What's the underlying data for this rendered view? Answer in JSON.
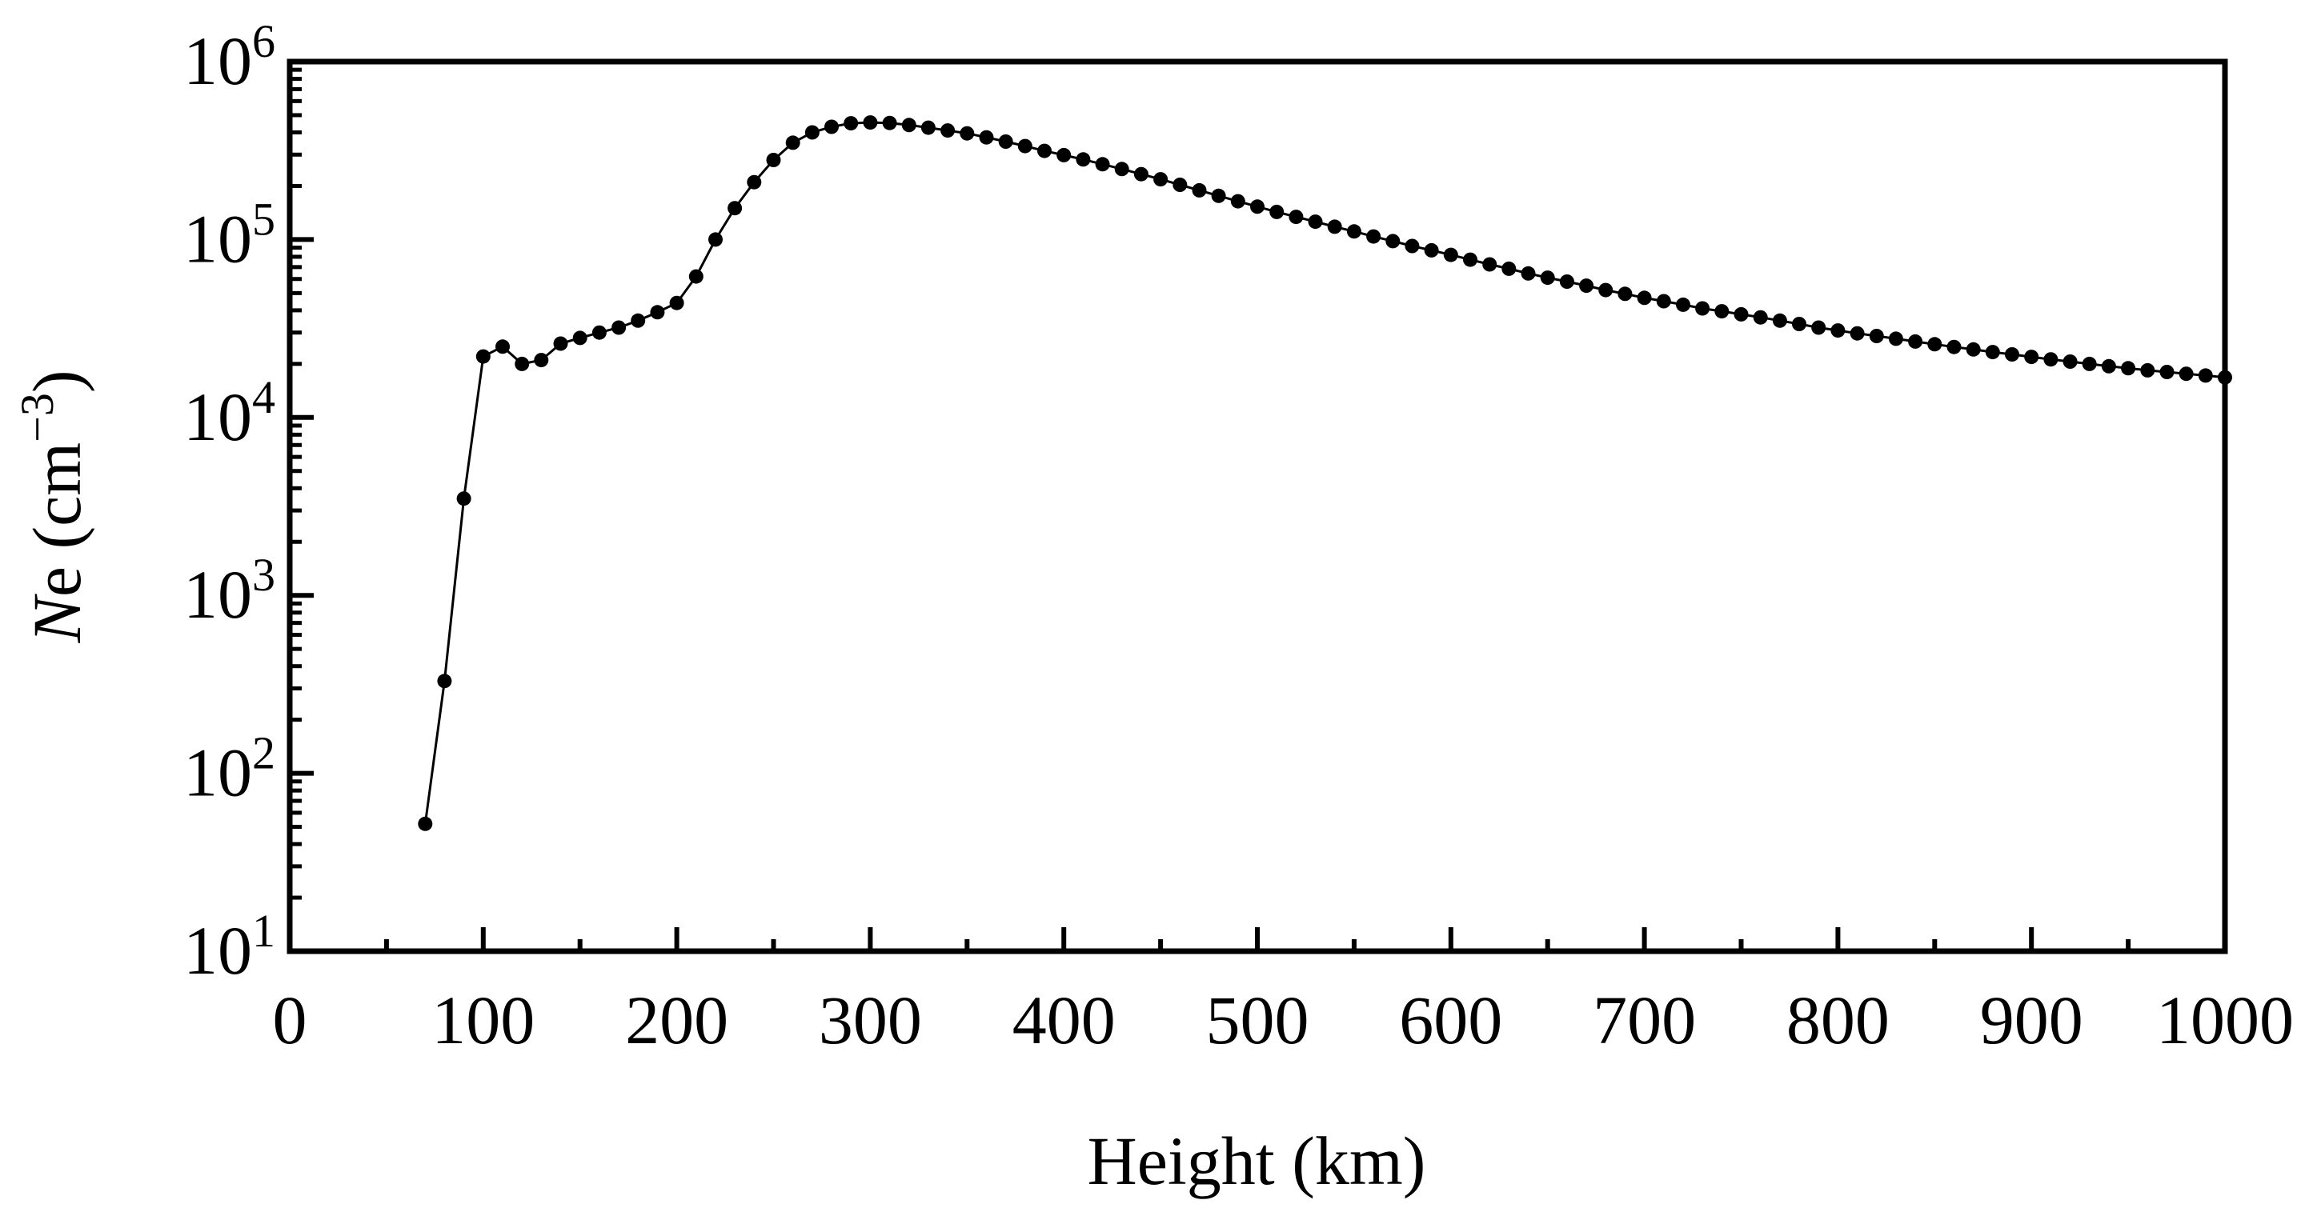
{
  "chart_data": {
    "type": "line",
    "xlabel": "Height (km)",
    "ylabel": {
      "symbol": "N",
      "rest": "e (cm",
      "exponent": "−3",
      "close": ")"
    },
    "xlim": [
      0,
      1000
    ],
    "ylim": [
      10,
      1000000
    ],
    "yscale": "log",
    "grid": false,
    "x_ticks": [
      "0",
      "100",
      "200",
      "300",
      "400",
      "500",
      "600",
      "700",
      "800",
      "900",
      "1000"
    ],
    "y_ticks": [
      {
        "base": "10",
        "exponent": "1"
      },
      {
        "base": "10",
        "exponent": "2"
      },
      {
        "base": "10",
        "exponent": "3"
      },
      {
        "base": "10",
        "exponent": "4"
      },
      {
        "base": "10",
        "exponent": "5"
      },
      {
        "base": "10",
        "exponent": "6"
      }
    ],
    "series": [
      {
        "marker": "circle",
        "color": "#000000",
        "x": [
          70,
          80,
          90,
          100,
          110,
          120,
          130,
          140,
          150,
          160,
          170,
          180,
          190,
          200,
          210,
          220,
          230,
          240,
          250,
          260,
          270,
          280,
          290,
          300,
          310,
          320,
          330,
          340,
          350,
          360,
          370,
          380,
          390,
          400,
          410,
          420,
          430,
          440,
          450,
          460,
          470,
          480,
          490,
          500,
          510,
          520,
          530,
          540,
          550,
          560,
          570,
          580,
          590,
          600,
          610,
          620,
          630,
          640,
          650,
          660,
          670,
          680,
          690,
          700,
          710,
          720,
          730,
          740,
          750,
          760,
          770,
          780,
          790,
          800,
          810,
          820,
          830,
          840,
          850,
          860,
          870,
          880,
          890,
          900,
          910,
          920,
          930,
          940,
          950,
          960,
          970,
          980,
          990,
          1000
        ],
        "y": [
          52,
          330,
          3500,
          22000,
          25000,
          20000,
          21000,
          26000,
          28000,
          30000,
          32000,
          35000,
          39000,
          44000,
          62000,
          100000,
          150000,
          210000,
          280000,
          350000,
          400000,
          430000,
          450000,
          455000,
          452000,
          440000,
          425000,
          410000,
          395000,
          375000,
          355000,
          335000,
          315000,
          298000,
          282000,
          265000,
          249000,
          233000,
          218000,
          203000,
          189000,
          176000,
          164000,
          153000,
          143000,
          134000,
          126000,
          118000,
          111000,
          104000,
          98000,
          92000,
          87000,
          82000,
          77000,
          72500,
          68500,
          64500,
          61000,
          58000,
          55000,
          52000,
          49500,
          47000,
          45000,
          43000,
          41000,
          39500,
          38000,
          36500,
          35000,
          33500,
          32000,
          30800,
          29700,
          28700,
          27700,
          26700,
          25800,
          24900,
          24100,
          23300,
          22600,
          21900,
          21200,
          20600,
          20000,
          19400,
          18900,
          18400,
          18000,
          17600,
          17200,
          16800
        ]
      }
    ]
  }
}
